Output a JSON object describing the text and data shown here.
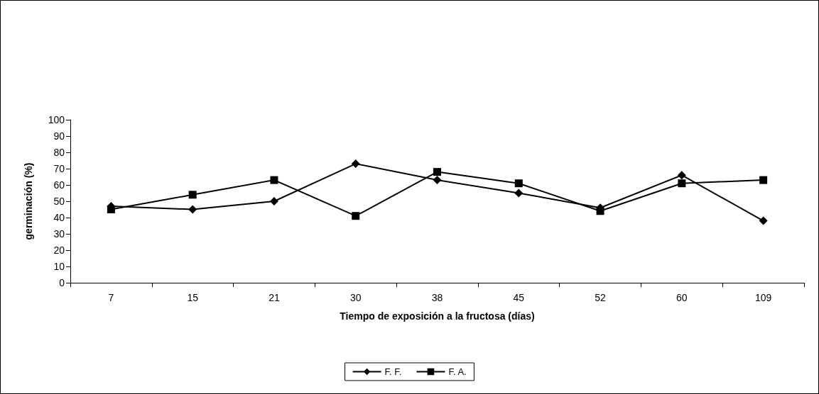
{
  "chart_data": {
    "type": "line",
    "xlabel": "Tiempo de exposición a la fructosa (días)",
    "ylabel": "germinación (%)",
    "categories": [
      "7",
      "15",
      "21",
      "30",
      "38",
      "45",
      "52",
      "60",
      "109"
    ],
    "series": [
      {
        "name": "F. F.",
        "color": "#000000",
        "marker": "diamond",
        "values": [
          47,
          45,
          50,
          73,
          63,
          55,
          46,
          66,
          38
        ]
      },
      {
        "name": "F. A.",
        "color": "#000000",
        "marker": "square",
        "values": [
          45,
          54,
          63,
          41,
          68,
          61,
          44,
          61,
          63
        ]
      }
    ],
    "ylim": [
      0,
      100
    ],
    "yticks": [
      0,
      10,
      20,
      30,
      40,
      50,
      60,
      70,
      80,
      90,
      100
    ],
    "grid": false,
    "legend": "bottom",
    "line_style": "solid"
  }
}
